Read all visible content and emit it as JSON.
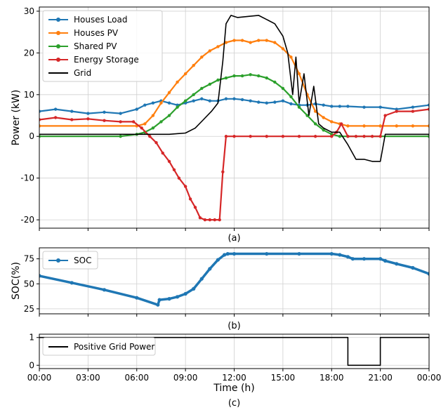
{
  "chart_data": [
    {
      "type": "line",
      "panel_label": "(a)",
      "xlabel": "",
      "ylabel": "Power (kW)",
      "xlim": [
        0,
        24
      ],
      "ylim": [
        -22,
        31
      ],
      "yticks": [
        -20,
        -10,
        0,
        10,
        20,
        30
      ],
      "ytick_labels": [
        "-20",
        "-10",
        "0",
        "10",
        "20",
        "30"
      ],
      "grid": true,
      "legend": "top-left",
      "series": [
        {
          "name": "Houses Load",
          "color": "#1f77b4",
          "marker": true,
          "x": [
            0,
            1,
            2,
            3,
            4,
            5,
            6,
            6.5,
            7,
            7.5,
            8,
            8.5,
            9,
            9.5,
            10,
            10.5,
            11,
            11.5,
            12,
            12.5,
            13,
            13.5,
            14,
            14.5,
            15,
            15.5,
            16,
            16.5,
            17,
            17.5,
            18,
            18.5,
            19,
            20,
            21,
            22,
            23,
            24
          ],
          "y": [
            6,
            6.5,
            6,
            5.5,
            5.8,
            5.5,
            6.5,
            7.5,
            8,
            8.5,
            8,
            7.5,
            8,
            8.5,
            9,
            8.5,
            8.5,
            9,
            9,
            8.8,
            8.5,
            8.2,
            8,
            8.2,
            8.5,
            7.8,
            7.5,
            7.5,
            7.8,
            7.5,
            7.2,
            7.2,
            7.2,
            7,
            7,
            6.5,
            7,
            7.5
          ]
        },
        {
          "name": "Houses PV",
          "color": "#ff7f0e",
          "marker": true,
          "x": [
            0,
            6,
            6.5,
            7,
            7.5,
            8,
            8.5,
            9,
            9.5,
            10,
            10.5,
            11,
            11.5,
            12,
            12.5,
            13,
            13.5,
            14,
            14.5,
            15,
            15.5,
            16,
            16.5,
            17,
            17.5,
            18,
            18.5,
            19,
            20,
            21,
            22,
            23,
            24
          ],
          "y": [
            2.5,
            2.5,
            3,
            5,
            8,
            10.5,
            13,
            15,
            17,
            19,
            20.5,
            21.5,
            22.5,
            23,
            23,
            22.5,
            23,
            23,
            22.5,
            21,
            19,
            15,
            10,
            6,
            4.5,
            3.5,
            3,
            2.5,
            2.5,
            2.5,
            2.5,
            2.5,
            2.5
          ]
        },
        {
          "name": "Shared PV",
          "color": "#2ca02c",
          "marker": true,
          "x": [
            0,
            5,
            6,
            6.5,
            7,
            7.5,
            8,
            8.5,
            9,
            9.5,
            10,
            10.5,
            11,
            11.5,
            12,
            12.5,
            13,
            13.5,
            14,
            14.5,
            15,
            15.5,
            16,
            16.5,
            17,
            17.5,
            18,
            18.5,
            19,
            24
          ],
          "y": [
            0,
            0,
            0.5,
            1,
            2,
            3.5,
            5,
            7,
            8.5,
            10,
            11.5,
            12.5,
            13.5,
            14,
            14.5,
            14.5,
            14.8,
            14.5,
            14,
            13,
            11.5,
            9.5,
            7,
            5,
            3,
            1.5,
            0.5,
            0,
            0,
            0
          ]
        },
        {
          "name": "Energy Storage",
          "color": "#d62728",
          "marker": true,
          "x": [
            0,
            1,
            2,
            3,
            4,
            5,
            5.8,
            6.3,
            6.8,
            7.2,
            7.6,
            8,
            8.3,
            8.6,
            9,
            9.3,
            9.6,
            9.9,
            10.2,
            10.5,
            10.8,
            11.1,
            11.3,
            11.5,
            12,
            13,
            14,
            15,
            16,
            17,
            18,
            18.3,
            18.6,
            19,
            19.5,
            20,
            20.5,
            21,
            21.3,
            22,
            23,
            24
          ],
          "y": [
            4,
            4.5,
            4,
            4.2,
            3.8,
            3.5,
            3.5,
            2,
            0,
            -1.5,
            -4,
            -6,
            -8,
            -10,
            -12,
            -15,
            -17,
            -19.5,
            -20,
            -20,
            -20,
            -20,
            -8.5,
            0,
            0,
            0,
            0,
            0,
            0,
            0,
            0,
            1,
            3,
            0,
            0,
            0,
            0,
            0,
            5,
            6,
            6,
            6.5
          ]
        },
        {
          "name": "Grid",
          "color": "#000000",
          "marker": false,
          "x": [
            0,
            2,
            4,
            6,
            7,
            8,
            9,
            9.6,
            10.1,
            10.6,
            11,
            11.3,
            11.5,
            11.8,
            12.2,
            13,
            13.5,
            14,
            14.5,
            15,
            15.3,
            15.6,
            15.8,
            16,
            16.3,
            16.6,
            16.9,
            17.2,
            17.5,
            18,
            18.5,
            19,
            19.5,
            20,
            20.5,
            21,
            21.3,
            22,
            23,
            24
          ],
          "y": [
            0.5,
            0.5,
            0.5,
            0.5,
            0.5,
            0.5,
            0.8,
            2,
            4,
            6,
            8,
            18,
            27,
            29,
            28.5,
            28.8,
            29,
            28,
            27,
            24,
            20,
            10,
            19,
            8,
            15,
            5,
            12,
            3,
            2,
            1,
            1,
            -2,
            -5.5,
            -5.5,
            -6,
            -6,
            0.5,
            0.5,
            0.5,
            0.5
          ]
        }
      ]
    },
    {
      "type": "line",
      "panel_label": "(b)",
      "xlabel": "",
      "ylabel": "SOC(%)",
      "xlim": [
        0,
        24
      ],
      "ylim": [
        20,
        86
      ],
      "yticks": [
        25,
        50,
        75
      ],
      "ytick_labels": [
        "25",
        "50",
        "75"
      ],
      "grid": true,
      "legend": "top-left",
      "series": [
        {
          "name": "SOC",
          "color": "#1f77b4",
          "marker": true,
          "x": [
            0,
            2,
            4,
            6,
            7.3,
            7.4,
            8,
            8.5,
            9,
            9.5,
            10,
            10.5,
            11,
            11.4,
            11.6,
            12,
            14,
            16,
            18,
            18.5,
            19,
            19.3,
            20,
            21,
            21.3,
            22,
            23,
            24
          ],
          "y": [
            58,
            51,
            44,
            36,
            29,
            34,
            35,
            37,
            40,
            45,
            55,
            65,
            74,
            79,
            80,
            80,
            80,
            80,
            80,
            79,
            77,
            75,
            75,
            75,
            73,
            70,
            66,
            60
          ]
        }
      ]
    },
    {
      "type": "line",
      "panel_label": "(c)",
      "xlabel": "Time (h)",
      "ylabel": "",
      "xlim": [
        0,
        24
      ],
      "ylim": [
        -0.12,
        1.12
      ],
      "yticks": [
        0,
        1
      ],
      "ytick_labels": [
        "0",
        "1"
      ],
      "grid": true,
      "legend": "top-left",
      "series": [
        {
          "name": "Positive Grid Power",
          "color": "#000000",
          "marker": false,
          "x": [
            0,
            19.0,
            19.0,
            21.0,
            21.0,
            24
          ],
          "y": [
            1,
            1,
            0,
            0,
            1,
            1
          ]
        }
      ]
    }
  ],
  "xticks": [
    0,
    3,
    6,
    9,
    12,
    15,
    18,
    21,
    24
  ],
  "xtick_labels": [
    "00:00",
    "03:00",
    "06:00",
    "09:00",
    "12:00",
    "15:00",
    "18:00",
    "21:00",
    "00:00"
  ]
}
